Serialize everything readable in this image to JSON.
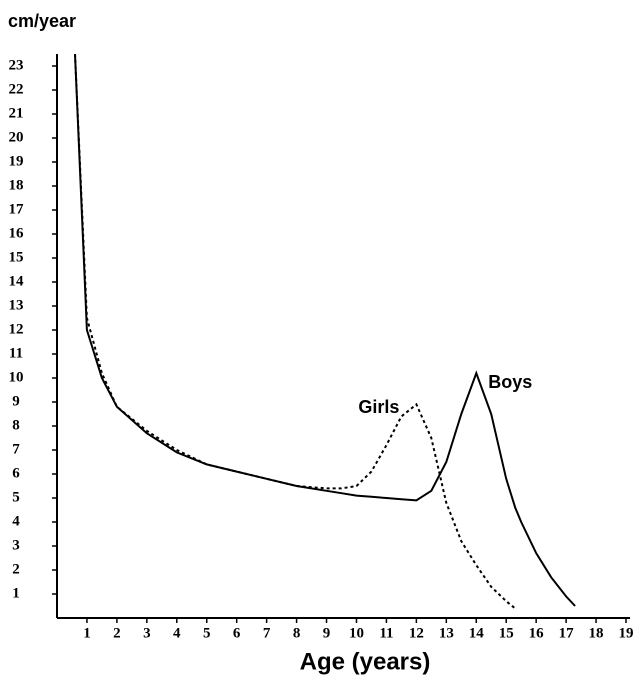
{
  "chart_data": {
    "type": "line",
    "y_label": "cm/year",
    "x_label": "Age (years)",
    "x": [
      0.6,
      1,
      1.5,
      2,
      3,
      4,
      5,
      6,
      7,
      8,
      9,
      9.5,
      10,
      10.5,
      11,
      11.5,
      12,
      12.5,
      13,
      13.5,
      14,
      14.5,
      15,
      15.3,
      15.5,
      16,
      16.5,
      17,
      17.3
    ],
    "series": [
      {
        "name": "Girls",
        "color": "#000000",
        "style": "dashed",
        "values": [
          23.5,
          12.5,
          10.2,
          8.8,
          7.8,
          7.0,
          6.4,
          6.1,
          5.8,
          5.5,
          5.4,
          5.4,
          5.5,
          6.1,
          7.2,
          8.4,
          8.9,
          7.5,
          4.8,
          3.2,
          2.2,
          1.3,
          0.7,
          0.4,
          null,
          null,
          null,
          null,
          null
        ]
      },
      {
        "name": "Boys",
        "color": "#000000",
        "style": "solid",
        "values": [
          23.5,
          12.0,
          10.0,
          8.8,
          7.7,
          6.9,
          6.4,
          6.1,
          5.8,
          5.5,
          5.3,
          5.2,
          5.1,
          5.05,
          5.0,
          4.95,
          4.9,
          5.3,
          6.5,
          8.5,
          10.2,
          8.5,
          5.8,
          4.6,
          4.0,
          2.7,
          1.7,
          0.9,
          0.5
        ]
      }
    ],
    "xlim": [
      0,
      19
    ],
    "ylim": [
      0,
      23.5
    ],
    "xticks": [
      1,
      2,
      3,
      4,
      5,
      6,
      7,
      8,
      9,
      10,
      11,
      12,
      13,
      14,
      15,
      16,
      17,
      18,
      19
    ],
    "yticks": [
      1,
      2,
      3,
      4,
      5,
      6,
      7,
      8,
      9,
      10,
      11,
      12,
      13,
      14,
      15,
      16,
      17,
      18,
      19,
      20,
      21,
      22,
      23
    ],
    "grid": false
  }
}
